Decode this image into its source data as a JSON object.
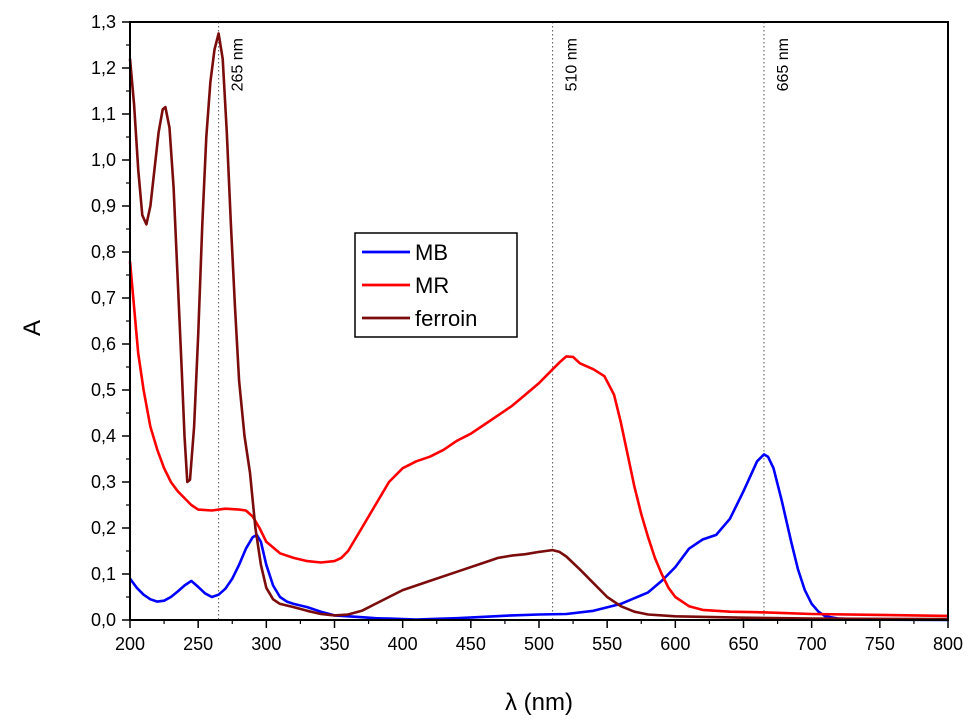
{
  "chart_data": {
    "type": "line",
    "xlabel": "λ (nm)",
    "ylabel": "A",
    "xlim": [
      200,
      800
    ],
    "ylim": [
      0,
      1.3
    ],
    "x_ticks": [
      "200",
      "250",
      "300",
      "350",
      "400",
      "450",
      "500",
      "550",
      "600",
      "650",
      "700",
      "750",
      "800"
    ],
    "y_ticks": [
      "0,0",
      "0,1",
      "0,2",
      "0,3",
      "0,4",
      "0,5",
      "0,6",
      "0,7",
      "0,8",
      "0,9",
      "1,0",
      "1,1",
      "1,2",
      "1,3"
    ],
    "grid": false,
    "legend_position": "center-left",
    "annotations": [
      {
        "x": 265,
        "label": "265 nm"
      },
      {
        "x": 510,
        "label": "510 nm"
      },
      {
        "x": 665,
        "label": "665 nm"
      }
    ],
    "series": [
      {
        "name": "MB",
        "color": "#0000ff",
        "points": [
          [
            200,
            0.09
          ],
          [
            205,
            0.07
          ],
          [
            210,
            0.055
          ],
          [
            215,
            0.045
          ],
          [
            220,
            0.04
          ],
          [
            225,
            0.042
          ],
          [
            230,
            0.05
          ],
          [
            235,
            0.062
          ],
          [
            240,
            0.075
          ],
          [
            245,
            0.085
          ],
          [
            250,
            0.072
          ],
          [
            255,
            0.058
          ],
          [
            260,
            0.05
          ],
          [
            265,
            0.055
          ],
          [
            270,
            0.068
          ],
          [
            275,
            0.09
          ],
          [
            280,
            0.12
          ],
          [
            285,
            0.155
          ],
          [
            290,
            0.18
          ],
          [
            293,
            0.185
          ],
          [
            296,
            0.17
          ],
          [
            300,
            0.12
          ],
          [
            305,
            0.075
          ],
          [
            310,
            0.05
          ],
          [
            315,
            0.04
          ],
          [
            320,
            0.035
          ],
          [
            330,
            0.028
          ],
          [
            340,
            0.018
          ],
          [
            350,
            0.01
          ],
          [
            360,
            0.008
          ],
          [
            370,
            0.006
          ],
          [
            380,
            0.004
          ],
          [
            390,
            0.003
          ],
          [
            400,
            0.002
          ],
          [
            410,
            0.001
          ],
          [
            420,
            0.002
          ],
          [
            440,
            0.004
          ],
          [
            460,
            0.007
          ],
          [
            480,
            0.01
          ],
          [
            500,
            0.012
          ],
          [
            520,
            0.013
          ],
          [
            540,
            0.02
          ],
          [
            560,
            0.035
          ],
          [
            580,
            0.06
          ],
          [
            590,
            0.085
          ],
          [
            600,
            0.115
          ],
          [
            610,
            0.155
          ],
          [
            620,
            0.175
          ],
          [
            630,
            0.185
          ],
          [
            640,
            0.22
          ],
          [
            650,
            0.28
          ],
          [
            660,
            0.345
          ],
          [
            665,
            0.36
          ],
          [
            668,
            0.355
          ],
          [
            672,
            0.33
          ],
          [
            678,
            0.26
          ],
          [
            685,
            0.17
          ],
          [
            690,
            0.11
          ],
          [
            695,
            0.065
          ],
          [
            700,
            0.035
          ],
          [
            705,
            0.018
          ],
          [
            710,
            0.008
          ],
          [
            720,
            0.003
          ],
          [
            740,
            0.001
          ],
          [
            800,
            0.0
          ]
        ]
      },
      {
        "name": "MR",
        "color": "#ff0000",
        "points": [
          [
            200,
            0.78
          ],
          [
            203,
            0.68
          ],
          [
            206,
            0.58
          ],
          [
            210,
            0.5
          ],
          [
            215,
            0.42
          ],
          [
            220,
            0.37
          ],
          [
            225,
            0.33
          ],
          [
            230,
            0.3
          ],
          [
            235,
            0.28
          ],
          [
            240,
            0.265
          ],
          [
            245,
            0.25
          ],
          [
            250,
            0.24
          ],
          [
            260,
            0.238
          ],
          [
            270,
            0.242
          ],
          [
            280,
            0.24
          ],
          [
            285,
            0.238
          ],
          [
            290,
            0.225
          ],
          [
            295,
            0.2
          ],
          [
            300,
            0.17
          ],
          [
            310,
            0.145
          ],
          [
            320,
            0.135
          ],
          [
            330,
            0.128
          ],
          [
            340,
            0.125
          ],
          [
            350,
            0.128
          ],
          [
            355,
            0.135
          ],
          [
            360,
            0.15
          ],
          [
            370,
            0.2
          ],
          [
            380,
            0.25
          ],
          [
            390,
            0.3
          ],
          [
            400,
            0.33
          ],
          [
            410,
            0.345
          ],
          [
            420,
            0.355
          ],
          [
            430,
            0.37
          ],
          [
            440,
            0.39
          ],
          [
            450,
            0.405
          ],
          [
            460,
            0.425
          ],
          [
            470,
            0.445
          ],
          [
            480,
            0.465
          ],
          [
            490,
            0.49
          ],
          [
            500,
            0.515
          ],
          [
            510,
            0.545
          ],
          [
            515,
            0.56
          ],
          [
            520,
            0.573
          ],
          [
            525,
            0.572
          ],
          [
            530,
            0.558
          ],
          [
            540,
            0.545
          ],
          [
            548,
            0.53
          ],
          [
            555,
            0.49
          ],
          [
            560,
            0.43
          ],
          [
            565,
            0.36
          ],
          [
            570,
            0.29
          ],
          [
            575,
            0.23
          ],
          [
            580,
            0.18
          ],
          [
            585,
            0.135
          ],
          [
            590,
            0.1
          ],
          [
            595,
            0.07
          ],
          [
            600,
            0.05
          ],
          [
            610,
            0.03
          ],
          [
            620,
            0.022
          ],
          [
            640,
            0.018
          ],
          [
            660,
            0.017
          ],
          [
            680,
            0.015
          ],
          [
            700,
            0.013
          ],
          [
            750,
            0.011
          ],
          [
            800,
            0.009
          ]
        ]
      },
      {
        "name": "ferroin",
        "color": "#7b0c0c",
        "points": [
          [
            200,
            1.22
          ],
          [
            203,
            1.12
          ],
          [
            206,
            0.98
          ],
          [
            209,
            0.88
          ],
          [
            212,
            0.86
          ],
          [
            215,
            0.9
          ],
          [
            218,
            0.98
          ],
          [
            221,
            1.06
          ],
          [
            224,
            1.11
          ],
          [
            226,
            1.115
          ],
          [
            229,
            1.07
          ],
          [
            232,
            0.94
          ],
          [
            235,
            0.74
          ],
          [
            238,
            0.54
          ],
          [
            240,
            0.4
          ],
          [
            242,
            0.3
          ],
          [
            244,
            0.305
          ],
          [
            247,
            0.42
          ],
          [
            250,
            0.62
          ],
          [
            253,
            0.86
          ],
          [
            256,
            1.05
          ],
          [
            259,
            1.17
          ],
          [
            262,
            1.24
          ],
          [
            265,
            1.275
          ],
          [
            268,
            1.22
          ],
          [
            271,
            1.06
          ],
          [
            274,
            0.86
          ],
          [
            277,
            0.68
          ],
          [
            280,
            0.52
          ],
          [
            284,
            0.4
          ],
          [
            288,
            0.32
          ],
          [
            292,
            0.2
          ],
          [
            296,
            0.12
          ],
          [
            300,
            0.07
          ],
          [
            305,
            0.045
          ],
          [
            310,
            0.035
          ],
          [
            320,
            0.028
          ],
          [
            330,
            0.02
          ],
          [
            340,
            0.013
          ],
          [
            350,
            0.01
          ],
          [
            360,
            0.012
          ],
          [
            370,
            0.02
          ],
          [
            380,
            0.035
          ],
          [
            390,
            0.05
          ],
          [
            400,
            0.065
          ],
          [
            420,
            0.085
          ],
          [
            440,
            0.105
          ],
          [
            460,
            0.125
          ],
          [
            470,
            0.135
          ],
          [
            480,
            0.14
          ],
          [
            490,
            0.143
          ],
          [
            500,
            0.148
          ],
          [
            505,
            0.15
          ],
          [
            510,
            0.152
          ],
          [
            515,
            0.148
          ],
          [
            520,
            0.138
          ],
          [
            530,
            0.11
          ],
          [
            540,
            0.08
          ],
          [
            550,
            0.05
          ],
          [
            560,
            0.03
          ],
          [
            570,
            0.018
          ],
          [
            580,
            0.012
          ],
          [
            600,
            0.008
          ],
          [
            650,
            0.005
          ],
          [
            700,
            0.003
          ],
          [
            800,
            0.002
          ]
        ]
      }
    ]
  }
}
